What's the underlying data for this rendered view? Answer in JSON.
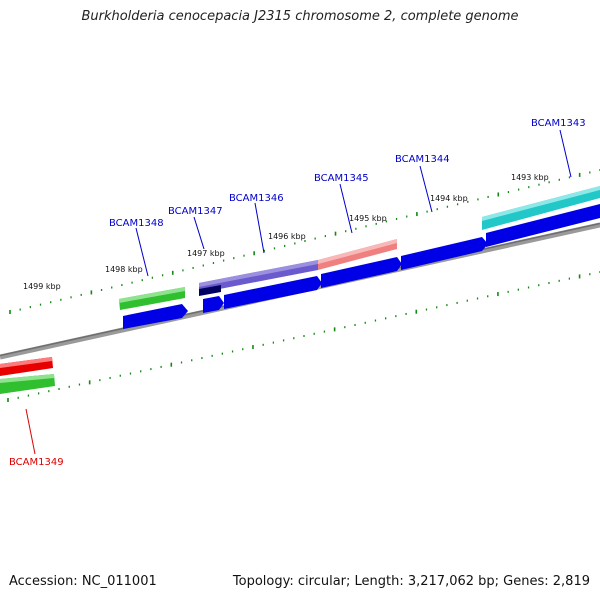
{
  "title": "Burkholderia cenocepacia J2315 chromosome 2, complete genome",
  "footer": {
    "accession": "Accession: NC_011001",
    "topology": "Topology: circular; Length: 3,217,062 bp; Genes: 2,819"
  },
  "colors": {
    "backbone": "#7f7f7f",
    "tick": "#138a13",
    "cds": "#0000e6",
    "gene_green": "#2fbf2f",
    "gene_red": "#e60000",
    "gene_purple": "#6a5acd",
    "gene_salmon": "#f08080",
    "gene_cyan": "#22c8c8",
    "label_blue": "#0000cc",
    "label_red": "#dd0000"
  },
  "kbp_marks": [
    "1499 kbp",
    "1498 kbp",
    "1497 kbp",
    "1496 kbp",
    "1495 kbp",
    "1494 kbp",
    "1493 kbp"
  ],
  "genes": [
    {
      "name": "BCAM1343",
      "color": "label_blue"
    },
    {
      "name": "BCAM1344",
      "color": "label_blue"
    },
    {
      "name": "BCAM1345",
      "color": "label_blue"
    },
    {
      "name": "BCAM1346",
      "color": "label_blue"
    },
    {
      "name": "BCAM1347",
      "color": "label_blue"
    },
    {
      "name": "BCAM1348",
      "color": "label_blue"
    },
    {
      "name": "BCAM1349",
      "color": "label_red"
    }
  ]
}
